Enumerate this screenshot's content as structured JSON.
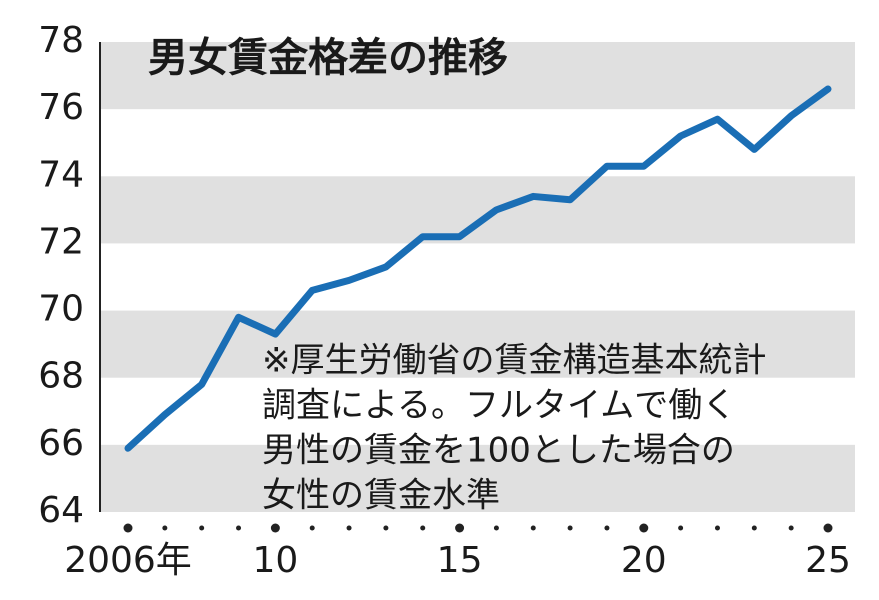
{
  "chart_data": {
    "type": "line",
    "title": "男女賃金格差の推移",
    "note": [
      "※厚生労働省の賃金構造基本統計",
      "調査による。フルタイムで働く",
      "男性の賃金を100とした場合の",
      "女性の賃金水準"
    ],
    "x": [
      2006,
      2007,
      2008,
      2009,
      2010,
      2011,
      2012,
      2013,
      2014,
      2015,
      2016,
      2017,
      2018,
      2019,
      2020,
      2021,
      2022,
      2023,
      2024,
      2025
    ],
    "series": [
      {
        "color": "#1a6eb5",
        "values": [
          65.9,
          66.9,
          67.8,
          69.8,
          69.3,
          70.6,
          70.9,
          71.3,
          72.2,
          72.2,
          73.0,
          73.4,
          73.3,
          74.3,
          74.3,
          75.2,
          75.7,
          74.8,
          75.8,
          76.6
        ]
      }
    ],
    "xlim": [
      2006,
      2025
    ],
    "xticks": [
      {
        "value": 2006,
        "label": "2006年"
      },
      {
        "value": 2010,
        "label": "10"
      },
      {
        "value": 2015,
        "label": "15"
      },
      {
        "value": 2020,
        "label": "20"
      },
      {
        "value": 2025,
        "label": "25"
      }
    ],
    "ylim": [
      64,
      78
    ],
    "yticks": [
      64,
      66,
      68,
      70,
      72,
      74,
      76,
      78
    ],
    "grid": true,
    "band_color": "#e0e0e0"
  }
}
